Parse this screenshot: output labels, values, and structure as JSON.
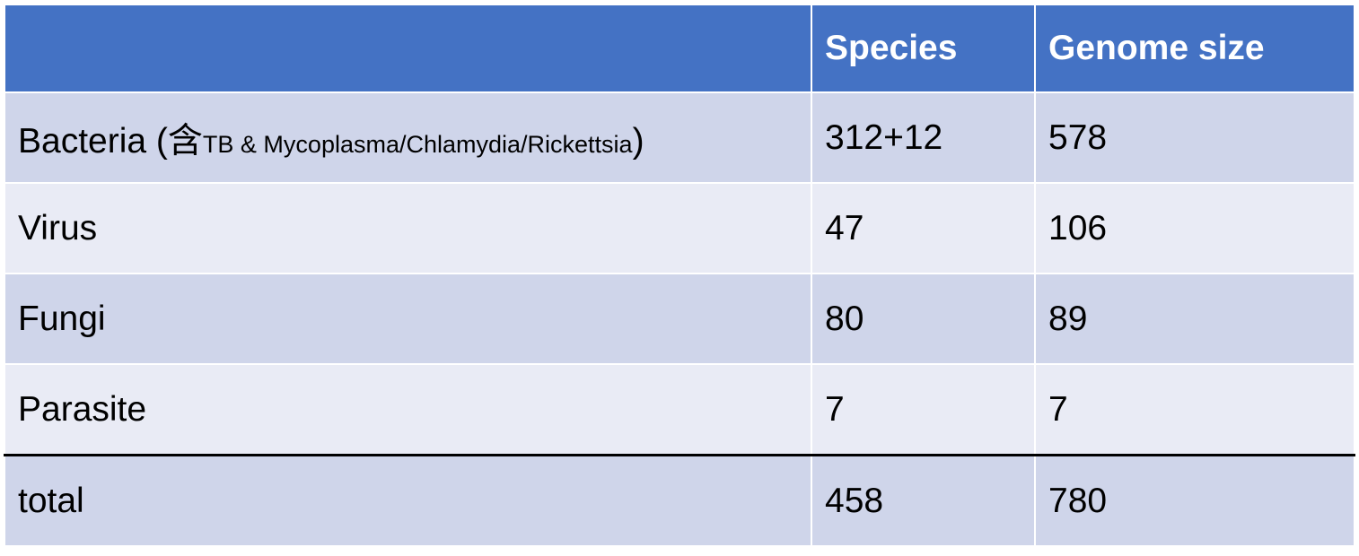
{
  "table": {
    "headers": [
      "",
      "Species",
      "Genome size"
    ],
    "rows": [
      {
        "label": "Bacteria (",
        "label_note_char": "含",
        "label_note": "TB & Mycoplasma/Chlamydia/Rickettsia",
        "label_close": ")",
        "species": "312+12",
        "genome_size": "578"
      },
      {
        "label": "Virus",
        "species": "47",
        "genome_size": "106"
      },
      {
        "label": "Fungi",
        "species": "80",
        "genome_size": "89"
      },
      {
        "label": "Parasite",
        "species": "7",
        "genome_size": "7"
      },
      {
        "label": "total",
        "species": "458",
        "genome_size": "780"
      }
    ],
    "colors": {
      "header_bg": "#4472c4",
      "row_odd_bg": "#cfd5ea",
      "row_even_bg": "#e9ebf5",
      "total_divider": "#000000"
    }
  }
}
